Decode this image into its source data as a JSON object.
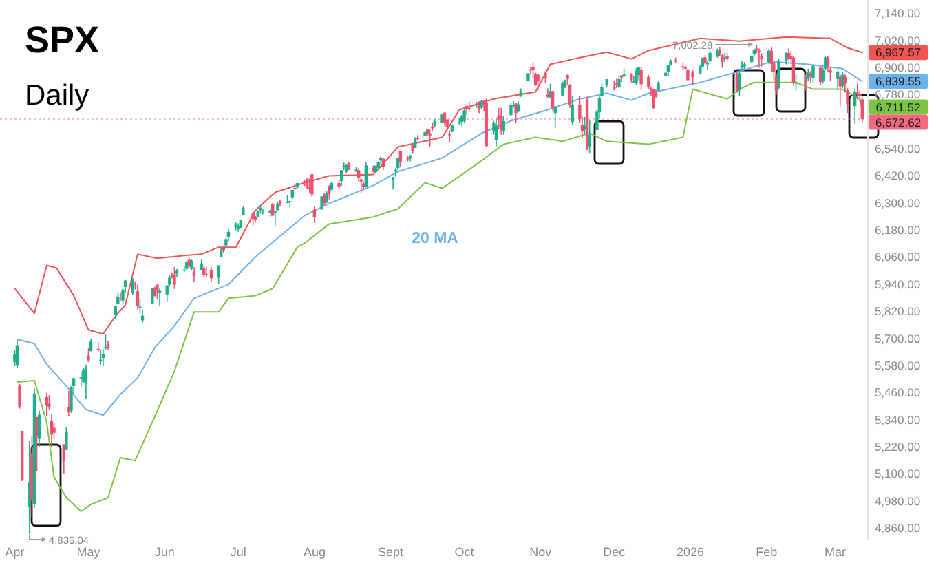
{
  "chart_data": {
    "type": "candlestick",
    "title": "SPX",
    "subtitle": "Daily",
    "colors": [
      "#1fae8b",
      "#1fae8b",
      "#f0506e",
      "#f0506e",
      "#1fae8b",
      "#f0506e",
      "#1fae8b",
      "#f0506e",
      "#1fae8b",
      "#f0506e",
      "#f0506e",
      "#f0506e",
      "#f0506e",
      "#f0506e",
      "#1fae8b",
      "#f0506e",
      "#1fae8b",
      "#1fae8b",
      "#1fae8b",
      "#1fae8b",
      "#1fae8b",
      "#f0506e",
      "#1fae8b",
      "#f0506e",
      "#1fae8b",
      "#1fae8b",
      "#1fae8b",
      "#f0506e",
      "#1fae8b",
      "#1fae8b",
      "#f0506e",
      "#1fae8b",
      "#1fae8b",
      "#1fae8b",
      "#f0506e",
      "#f0506e",
      "#1fae8b",
      "#1fae8b",
      "#1fae8b",
      "#f0506e",
      "#f0506e",
      "#1fae8b",
      "#1fae8b",
      "#1fae8b",
      "#f0506e",
      "#f0506e",
      "#1fae8b",
      "#1fae8b",
      "#1fae8b",
      "#f0506e",
      "#1fae8b",
      "#f0506e",
      "#1fae8b",
      "#f0506e",
      "#f0506e",
      "#f0506e",
      "#1fae8b",
      "#1fae8b",
      "#f0506e",
      "#1fae8b",
      "#1fae8b",
      "#1fae8b",
      "#1fae8b",
      "#1fae8b",
      "#1fae8b",
      "#f0506e",
      "#f0506e",
      "#1fae8b",
      "#1fae8b",
      "#1fae8b",
      "#1fae8b",
      "#f0506e",
      "#1fae8b",
      "#1fae8b",
      "#f0506e",
      "#1fae8b",
      "#1fae8b",
      "#1fae8b",
      "#f0506e",
      "#1fae8b",
      "#f0506e",
      "#f0506e",
      "#f0506e",
      "#f0506e",
      "#f0506e",
      "#1fae8b",
      "#f0506e",
      "#1fae8b",
      "#f0506e",
      "#1fae8b",
      "#f0506e",
      "#1fae8b",
      "#1fae8b",
      "#1fae8b",
      "#f0506e",
      "#1fae8b",
      "#f0506e",
      "#f0506e",
      "#f0506e",
      "#1fae8b",
      "#f0506e",
      "#1fae8b",
      "#1fae8b",
      "#1fae8b",
      "#f0506e",
      "#1fae8b",
      "#1fae8b",
      "#1fae8b",
      "#f0506e",
      "#f0506e",
      "#1fae8b",
      "#f0506e",
      "#1fae8b",
      "#f0506e",
      "#1fae8b",
      "#f0506e",
      "#f0506e",
      "#f0506e",
      "#1fae8b",
      "#1fae8b",
      "#f0506e",
      "#f0506e",
      "#f0506e",
      "#1fae8b",
      "#1fae8b",
      "#1fae8b",
      "#1fae8b",
      "#f0506e",
      "#f0506e",
      "#1fae8b",
      "#f0506e",
      "#1fae8b",
      "#f0506e",
      "#f0506e",
      "#1fae8b",
      "#1fae8b",
      "#f0506e",
      "#f0506e",
      "#1fae8b",
      "#1fae8b",
      "#1fae8b",
      "#f0506e",
      "#1fae8b",
      "#1fae8b",
      "#1fae8b",
      "#f0506e",
      "#f0506e",
      "#f0506e",
      "#f0506e",
      "#f0506e",
      "#f0506e",
      "#1fae8b",
      "#f0506e",
      "#1fae8b",
      "#1fae8b",
      "#1fae8b",
      "#f0506e",
      "#f0506e",
      "#1fae8b",
      "#f0506e",
      "#f0506e",
      "#1fae8b",
      "#f0506e",
      "#1fae8b",
      "#1fae8b",
      "#1fae8b",
      "#1fae8b",
      "#1fae8b",
      "#f0506e",
      "#f0506e",
      "#1fae8b",
      "#f0506e",
      "#1fae8b",
      "#f0506e",
      "#1fae8b",
      "#1fae8b",
      "#1fae8b",
      "#f0506e",
      "#f0506e",
      "#f0506e",
      "#f0506e",
      "#f0506e",
      "#1fae8b",
      "#1fae8b",
      "#1fae8b",
      "#1fae8b",
      "#f0506e",
      "#f0506e",
      "#f0506e",
      "#f0506e",
      "#f0506e",
      "#1fae8b",
      "#1fae8b",
      "#f0506e",
      "#1fae8b",
      "#1fae8b",
      "#1fae8b",
      "#f0506e",
      "#f0506e",
      "#1fae8b",
      "#f0506e",
      "#f0506e",
      "#1fae8b",
      "#1fae8b",
      "#1fae8b",
      "#1fae8b",
      "#1fae8b",
      "#f0506e",
      "#f0506e",
      "#f0506e",
      "#1fae8b",
      "#f0506e",
      "#f0506e",
      "#f0506e",
      "#1fae8b",
      "#1fae8b",
      "#f0506e",
      "#f0506e",
      "#f0506e",
      "#1fae8b",
      "#f0506e",
      "#1fae8b",
      "#f0506e",
      "#1fae8b",
      "#f0506e",
      "#1fae8b",
      "#1fae8b",
      "#f0506e",
      "#f0506e",
      "#1fae8b",
      "#f0506e",
      "#1fae8b",
      "#f0506e",
      "#f0506e",
      "#1fae8b",
      "#f0506e",
      "#f0506e",
      "#f0506e"
    ],
    "xlim": [
      "2025-03-26",
      "2026-03-14"
    ],
    "xticks": [
      {
        "value": "2025-04-01",
        "label": "Apr"
      },
      {
        "value": "2025-05-01",
        "label": "May"
      },
      {
        "value": "2025-06-01",
        "label": "Jun"
      },
      {
        "value": "2025-07-01",
        "label": "Jul"
      },
      {
        "value": "2025-08-01",
        "label": "Aug"
      },
      {
        "value": "2025-09-01",
        "label": "Sept"
      },
      {
        "value": "2025-10-01",
        "label": "Oct"
      },
      {
        "value": "2025-11-01",
        "label": "Nov"
      },
      {
        "value": "2025-12-01",
        "label": "Dec"
      },
      {
        "value": "2026-01-01",
        "label": "2026"
      },
      {
        "value": "2026-02-01",
        "label": "Feb"
      },
      {
        "value": "2026-03-01",
        "label": "Mar"
      }
    ],
    "ylim": [
      4810,
      7200
    ],
    "yticks": [
      {
        "value": 7140,
        "label": "7,140.00"
      },
      {
        "value": 7020,
        "label": "7,020.00"
      },
      {
        "value": 6900,
        "label": "6,900.00"
      },
      {
        "value": 6780,
        "label": "6,780.00"
      },
      {
        "value": 6540,
        "label": "6,540.00"
      },
      {
        "value": 6420,
        "label": "6,420.00"
      },
      {
        "value": 6300,
        "label": "6,300.00"
      },
      {
        "value": 6180,
        "label": "6,180.00"
      },
      {
        "value": 6060,
        "label": "6,060.00"
      },
      {
        "value": 5940,
        "label": "5,940.00"
      },
      {
        "value": 5820,
        "label": "5,820.00"
      },
      {
        "value": 5700,
        "label": "5,700.00"
      },
      {
        "value": 5580,
        "label": "5,580.00"
      },
      {
        "value": 5460,
        "label": "5,460.00"
      },
      {
        "value": 5340,
        "label": "5,340.00"
      },
      {
        "value": 5220,
        "label": "5,220.00"
      },
      {
        "value": 5100,
        "label": "5,100.00"
      },
      {
        "value": 4980,
        "label": "4,980.00"
      },
      {
        "value": 4860,
        "label": "4,860.00"
      }
    ],
    "x": [
      "2025-04-01",
      "2025-04-02",
      "2025-04-03",
      "2025-04-04",
      "2025-04-07",
      "2025-04-08",
      "2025-04-09",
      "2025-04-10",
      "2025-04-11",
      "2025-04-14",
      "2025-04-15",
      "2025-04-16",
      "2025-04-17",
      "2025-04-21",
      "2025-04-22",
      "2025-04-23",
      "2025-04-24",
      "2025-04-25",
      "2025-04-28",
      "2025-04-29",
      "2025-04-30",
      "2025-05-01",
      "2025-05-02",
      "2025-05-05",
      "2025-05-06",
      "2025-05-07",
      "2025-05-08",
      "2025-05-09",
      "2025-05-12",
      "2025-05-13",
      "2025-05-14",
      "2025-05-15",
      "2025-05-16",
      "2025-05-19",
      "2025-05-20",
      "2025-05-21",
      "2025-05-22",
      "2025-05-23",
      "2025-05-27",
      "2025-05-28",
      "2025-05-29",
      "2025-05-30",
      "2025-06-02",
      "2025-06-03",
      "2025-06-04",
      "2025-06-05",
      "2025-06-06",
      "2025-06-09",
      "2025-06-10",
      "2025-06-11",
      "2025-06-12",
      "2025-06-13",
      "2025-06-16",
      "2025-06-17",
      "2025-06-18",
      "2025-06-20",
      "2025-06-23",
      "2025-06-24",
      "2025-06-25",
      "2025-06-26",
      "2025-06-27",
      "2025-06-30",
      "2025-07-01",
      "2025-07-02",
      "2025-07-03",
      "2025-07-07",
      "2025-07-08",
      "2025-07-09",
      "2025-07-10",
      "2025-07-11",
      "2025-07-14",
      "2025-07-15",
      "2025-07-16",
      "2025-07-17",
      "2025-07-18",
      "2025-07-21",
      "2025-07-22",
      "2025-07-23",
      "2025-07-24",
      "2025-07-25",
      "2025-07-28",
      "2025-07-29",
      "2025-07-30",
      "2025-07-31",
      "2025-08-01",
      "2025-08-04",
      "2025-08-05",
      "2025-08-06",
      "2025-08-07",
      "2025-08-08",
      "2025-08-11",
      "2025-08-12",
      "2025-08-13",
      "2025-08-14",
      "2025-08-15",
      "2025-08-18",
      "2025-08-19",
      "2025-08-20",
      "2025-08-21",
      "2025-08-22",
      "2025-08-25",
      "2025-08-26",
      "2025-08-27",
      "2025-08-28",
      "2025-08-29",
      "2025-09-02",
      "2025-09-03",
      "2025-09-04",
      "2025-09-05",
      "2025-09-08",
      "2025-09-09",
      "2025-09-10",
      "2025-09-11",
      "2025-09-12",
      "2025-09-15",
      "2025-09-16",
      "2025-09-17",
      "2025-09-18",
      "2025-09-19",
      "2025-09-22",
      "2025-09-23",
      "2025-09-24",
      "2025-09-25",
      "2025-09-26",
      "2025-09-29",
      "2025-09-30",
      "2025-10-01",
      "2025-10-02",
      "2025-10-03",
      "2025-10-06",
      "2025-10-07",
      "2025-10-08",
      "2025-10-09",
      "2025-10-10",
      "2025-10-13",
      "2025-10-14",
      "2025-10-15",
      "2025-10-16",
      "2025-10-17",
      "2025-10-20",
      "2025-10-21",
      "2025-10-22",
      "2025-10-23",
      "2025-10-24",
      "2025-10-27",
      "2025-10-28",
      "2025-10-29",
      "2025-10-30",
      "2025-10-31",
      "2025-11-03",
      "2025-11-04",
      "2025-11-05",
      "2025-11-06",
      "2025-11-07",
      "2025-11-10",
      "2025-11-11",
      "2025-11-12",
      "2025-11-13",
      "2025-11-14",
      "2025-11-17",
      "2025-11-18",
      "2025-11-19",
      "2025-11-20",
      "2025-11-21",
      "2025-11-24",
      "2025-11-25",
      "2025-11-26",
      "2025-11-28",
      "2025-12-01",
      "2025-12-02",
      "2025-12-03",
      "2025-12-04",
      "2025-12-05",
      "2025-12-08",
      "2025-12-09",
      "2025-12-10",
      "2025-12-11",
      "2025-12-12",
      "2025-12-15",
      "2025-12-16",
      "2025-12-17",
      "2025-12-18",
      "2025-12-19",
      "2025-12-22",
      "2025-12-23",
      "2025-12-24",
      "2025-12-26",
      "2025-12-29",
      "2025-12-30",
      "2025-12-31",
      "2026-01-02",
      "2026-01-05",
      "2026-01-06",
      "2026-01-07",
      "2026-01-08",
      "2026-01-09",
      "2026-01-12",
      "2026-01-13",
      "2026-01-14",
      "2026-01-15",
      "2026-01-16",
      "2026-01-20",
      "2026-01-21",
      "2026-01-22",
      "2026-01-23",
      "2026-01-26",
      "2026-01-27",
      "2026-01-28",
      "2026-01-29",
      "2026-01-30",
      "2026-02-02",
      "2026-02-03",
      "2026-02-04",
      "2026-02-05",
      "2026-02-06",
      "2026-02-09",
      "2026-02-10",
      "2026-02-11",
      "2026-02-12",
      "2026-02-13",
      "2026-02-17",
      "2026-02-18",
      "2026-02-19",
      "2026-02-20",
      "2026-02-23",
      "2026-02-24",
      "2026-02-25",
      "2026-02-26",
      "2026-02-27",
      "2026-03-02",
      "2026-03-03",
      "2026-03-04",
      "2026-03-05",
      "2026-03-06",
      "2026-03-09",
      "2026-03-10",
      "2026-03-11",
      "2026-03-12"
    ],
    "ohlc": [
      [
        5597,
        5650,
        5578,
        5633
      ],
      [
        5580,
        5695,
        5571,
        5671
      ],
      [
        5492,
        5500,
        5390,
        5397
      ],
      [
        5292,
        5292,
        5069,
        5074
      ],
      [
        4953,
        5246,
        4835.04,
        5062
      ],
      [
        5193,
        5267,
        4910,
        4982
      ],
      [
        4966,
        5481,
        4950,
        5457
      ],
      [
        5353,
        5353,
        5115,
        5268
      ],
      [
        5256,
        5381,
        5220,
        5363
      ],
      [
        5441,
        5460,
        5358,
        5406
      ],
      [
        5412,
        5450,
        5387,
        5397
      ],
      [
        5335,
        5367,
        5220,
        5275
      ],
      [
        5305,
        5328,
        5255,
        5283
      ],
      [
        5232,
        5232,
        5101,
        5158
      ],
      [
        5207,
        5309,
        5207,
        5288
      ],
      [
        5395,
        5469,
        5356,
        5376
      ],
      [
        5381,
        5489,
        5371,
        5485
      ],
      [
        5490,
        5528,
        5456,
        5525
      ],
      [
        5529,
        5554,
        5484,
        5529
      ],
      [
        5509,
        5571,
        5505,
        5561
      ],
      [
        5500,
        5581,
        5434,
        5569
      ],
      [
        5626,
        5659,
        5597,
        5604
      ],
      [
        5645,
        5700,
        5644,
        5687
      ],
      [
        5655,
        5684,
        5640,
        5650
      ],
      [
        5607,
        5649,
        5586,
        5607
      ],
      [
        5614,
        5654,
        5578,
        5631
      ],
      [
        5663,
        5720,
        5649,
        5664
      ],
      [
        5675,
        5691,
        5650,
        5660
      ],
      [
        5807,
        5845,
        5786,
        5844
      ],
      [
        5854,
        5906,
        5854,
        5887
      ],
      [
        5896,
        5906,
        5868,
        5893
      ],
      [
        5869,
        5925,
        5851,
        5917
      ],
      [
        5929,
        5959,
        5903,
        5958
      ],
      [
        5903,
        5969,
        5895,
        5964
      ],
      [
        5944,
        5954,
        5918,
        5941
      ],
      [
        5910,
        5939,
        5830,
        5845
      ],
      [
        5842,
        5878,
        5811,
        5842
      ],
      [
        5781,
        5830,
        5767,
        5802
      ],
      [
        5854,
        5925,
        5854,
        5922
      ],
      [
        5926,
        5930,
        5887,
        5889
      ],
      [
        5939,
        5944,
        5876,
        5912
      ],
      [
        5903,
        5922,
        5843,
        5912
      ],
      [
        5896,
        5937,
        5862,
        5936
      ],
      [
        5939,
        5981,
        5930,
        5970
      ],
      [
        5979,
        5990,
        5967,
        5971
      ],
      [
        5985,
        6017,
        5921,
        5939
      ],
      [
        5988,
        6008,
        5974,
        6000
      ],
      [
        6005,
        6022,
        5995,
        6006
      ],
      [
        6009,
        6044,
        6001,
        6038
      ],
      [
        6049,
        6060,
        6013,
        6022
      ],
      [
        6010,
        6050,
        6004,
        6045
      ],
      [
        5997,
        6017,
        5952,
        5977
      ],
      [
        6005,
        6050,
        6005,
        6033
      ],
      [
        6013,
        6023,
        5974,
        5983
      ],
      [
        5986,
        6019,
        5971,
        5981
      ],
      [
        6003,
        6018,
        5952,
        5967
      ],
      [
        5970,
        6025,
        5944,
        6025
      ],
      [
        6062,
        6101,
        6062,
        6092
      ],
      [
        6105,
        6108,
        6081,
        6092
      ],
      [
        6113,
        6146,
        6102,
        6141
      ],
      [
        6151,
        6187,
        6132,
        6173
      ],
      [
        6193,
        6215,
        6180,
        6205
      ],
      [
        6187,
        6211,
        6173,
        6198
      ],
      [
        6191,
        6227,
        6191,
        6227
      ],
      [
        6247,
        6285,
        6247,
        6279
      ],
      [
        6258,
        6263,
        6201,
        6230
      ],
      [
        6238,
        6243,
        6215,
        6226
      ],
      [
        6240,
        6269,
        6237,
        6263
      ],
      [
        6269,
        6291,
        6254,
        6280
      ],
      [
        6255,
        6274,
        6251,
        6260
      ],
      [
        6256,
        6273,
        6238,
        6269
      ],
      [
        6295,
        6302,
        6244,
        6244
      ],
      [
        6259,
        6266,
        6201,
        6264
      ],
      [
        6270,
        6304,
        6265,
        6297
      ],
      [
        6309,
        6316,
        6286,
        6297
      ],
      [
        6305,
        6336,
        6303,
        6305
      ],
      [
        6306,
        6310,
        6281,
        6309
      ],
      [
        6326,
        6360,
        6318,
        6359
      ],
      [
        6368,
        6382,
        6360,
        6363
      ],
      [
        6370,
        6390,
        6364,
        6389
      ],
      [
        6397,
        6401,
        6376,
        6390
      ],
      [
        6409,
        6410,
        6365,
        6371
      ],
      [
        6373,
        6409,
        6346,
        6362
      ],
      [
        6428,
        6428,
        6328,
        6339
      ],
      [
        6271,
        6287,
        6213,
        6238
      ],
      [
        6272,
        6330,
        6272,
        6330
      ],
      [
        6335,
        6346,
        6289,
        6299
      ],
      [
        6307,
        6352,
        6300,
        6345
      ],
      [
        6375,
        6379,
        6317,
        6340
      ],
      [
        6359,
        6396,
        6359,
        6389
      ],
      [
        6389,
        6403,
        6363,
        6374
      ],
      [
        6398,
        6446,
        6378,
        6446
      ],
      [
        6465,
        6480,
        6447,
        6466
      ],
      [
        6439,
        6473,
        6434,
        6469
      ],
      [
        6478,
        6481,
        6446,
        6450
      ],
      [
        6445,
        6459,
        6438,
        6449
      ],
      [
        6446,
        6457,
        6397,
        6411
      ],
      [
        6406,
        6409,
        6343,
        6396
      ],
      [
        6387,
        6394,
        6360,
        6370
      ],
      [
        6371,
        6482,
        6371,
        6467
      ],
      [
        6457,
        6467,
        6438,
        6440
      ],
      [
        6438,
        6466,
        6434,
        6466
      ],
      [
        6457,
        6485,
        6454,
        6481
      ],
      [
        6489,
        6509,
        6469,
        6502
      ],
      [
        6497,
        6499,
        6447,
        6460
      ],
      [
        6401,
        6416,
        6361,
        6416
      ],
      [
        6442,
        6455,
        6418,
        6448
      ],
      [
        6456,
        6502,
        6447,
        6502
      ],
      [
        6530,
        6532,
        6460,
        6482
      ],
      [
        6500,
        6508,
        6485,
        6495
      ],
      [
        6498,
        6513,
        6485,
        6512
      ],
      [
        6560,
        6561,
        6519,
        6532
      ],
      [
        6545,
        6592,
        6545,
        6587
      ],
      [
        6589,
        6601,
        6578,
        6584
      ],
      [
        6598,
        6616,
        6598,
        6615
      ],
      [
        6626,
        6627,
        6599,
        6606
      ],
      [
        6609,
        6626,
        6551,
        6600
      ],
      [
        6637,
        6656,
        6617,
        6632
      ],
      [
        6643,
        6672,
        6635,
        6664
      ],
      [
        6657,
        6695,
        6654,
        6693
      ],
      [
        6701,
        6702,
        6644,
        6657
      ],
      [
        6670,
        6674,
        6618,
        6638
      ],
      [
        6606,
        6622,
        6570,
        6605
      ],
      [
        6617,
        6650,
        6614,
        6644
      ],
      [
        6661,
        6679,
        6645,
        6661
      ],
      [
        6661,
        6690,
        6636,
        6688
      ],
      [
        6664,
        6718,
        6657,
        6711
      ],
      [
        6731,
        6731,
        6692,
        6715
      ],
      [
        6722,
        6750,
        6705,
        6716
      ],
      [
        6734,
        6749,
        6722,
        6740
      ],
      [
        6748,
        6751,
        6699,
        6714
      ],
      [
        6723,
        6755,
        6719,
        6753
      ],
      [
        6753,
        6758,
        6708,
        6735
      ],
      [
        6744,
        6764,
        6550,
        6553
      ],
      [
        6617,
        6664,
        6604,
        6655
      ],
      [
        6580,
        6674,
        6552,
        6644
      ],
      [
        6689,
        6722,
        6629,
        6671
      ],
      [
        6688,
        6722,
        6603,
        6630
      ],
      [
        6618,
        6686,
        6603,
        6664
      ],
      [
        6690,
        6744,
        6690,
        6735
      ],
      [
        6732,
        6752,
        6722,
        6735
      ],
      [
        6741,
        6744,
        6655,
        6699
      ],
      [
        6705,
        6751,
        6705,
        6738
      ],
      [
        6775,
        6808,
        6771,
        6792
      ],
      [
        6840,
        6876,
        6840,
        6875
      ],
      [
        6892,
        6901,
        6871,
        6891
      ],
      [
        6902,
        6920,
        6856,
        6890
      ],
      [
        6872,
        6878,
        6820,
        6822
      ],
      [
        6869,
        6872,
        6799,
        6840
      ],
      [
        6878,
        6882,
        6834,
        6852
      ],
      [
        6781,
        6808,
        6764,
        6771
      ],
      [
        6769,
        6829,
        6767,
        6796
      ],
      [
        6796,
        6798,
        6707,
        6720
      ],
      [
        6699,
        6729,
        6632,
        6728
      ],
      [
        6777,
        6838,
        6774,
        6832
      ],
      [
        6815,
        6848,
        6810,
        6846
      ],
      [
        6867,
        6870,
        6824,
        6850
      ],
      [
        6825,
        6827,
        6722,
        6737
      ],
      [
        6660,
        6775,
        6647,
        6734
      ],
      [
        6736,
        6775,
        6657,
        6672
      ],
      [
        6647,
        6683,
        6589,
        6617
      ],
      [
        6628,
        6682,
        6605,
        6642
      ],
      [
        6761,
        6771,
        6535,
        6538
      ],
      [
        6552,
        6666,
        6522,
        6603
      ],
      [
        6624,
        6714,
        6623,
        6705
      ],
      [
        6703,
        6778,
        6673,
        6766
      ],
      [
        6776,
        6830,
        6776,
        6813
      ],
      [
        6823,
        6850,
        6812,
        6849
      ],
      [
        6813,
        6844,
        6800,
        6812
      ],
      [
        6830,
        6851,
        6810,
        6829
      ],
      [
        6815,
        6862,
        6810,
        6850
      ],
      [
        6866,
        6867,
        6837,
        6857
      ],
      [
        6867,
        6896,
        6859,
        6870
      ],
      [
        6871,
        6876,
        6835,
        6846
      ],
      [
        6840,
        6864,
        6832,
        6840
      ],
      [
        6831,
        6899,
        6823,
        6887
      ],
      [
        6867,
        6904,
        6844,
        6901
      ],
      [
        6889,
        6902,
        6801,
        6827
      ],
      [
        6859,
        6868,
        6806,
        6816
      ],
      [
        6809,
        6817,
        6776,
        6800
      ],
      [
        6806,
        6807,
        6719,
        6721
      ],
      [
        6789,
        6803,
        6767,
        6775
      ],
      [
        6800,
        6841,
        6796,
        6835
      ],
      [
        6863,
        6880,
        6860,
        6878
      ],
      [
        6881,
        6911,
        6864,
        6910
      ],
      [
        6911,
        6937,
        6909,
        6932
      ],
      [
        6933,
        6945,
        6922,
        6930
      ],
      [
        6906,
        6920,
        6888,
        6905
      ],
      [
        6903,
        6908,
        6892,
        6896
      ],
      [
        6893,
        6893,
        6844,
        6845
      ],
      [
        6879,
        6891,
        6824,
        6858
      ],
      [
        6875,
        6912,
        6870,
        6902
      ],
      [
        6905,
        6945,
        6900,
        6944
      ],
      [
        6946,
        6955,
        6915,
        6921
      ],
      [
        6915,
        6930,
        6890,
        6921
      ],
      [
        6930,
        6975,
        6925,
        6966
      ],
      [
        6950,
        6985,
        6945,
        6977
      ],
      [
        6978,
        6990,
        6950,
        6963
      ],
      [
        6955,
        6960,
        6900,
        6926
      ],
      [
        6940,
        6965,
        6925,
        6944
      ],
      [
        6950,
        6965,
        6930,
        6940
      ],
      [
        6870,
        6880,
        6790,
        6797
      ],
      [
        6800,
        6890,
        6775,
        6876
      ],
      [
        6900,
        6930,
        6890,
        6913
      ],
      [
        6905,
        6925,
        6895,
        6916
      ],
      [
        6925,
        6955,
        6920,
        6950
      ],
      [
        6960,
        6985,
        6950,
        6979
      ],
      [
        6985,
        7002.28,
        6965,
        6978
      ],
      [
        6975,
        6985,
        6900,
        6969
      ],
      [
        6950,
        6965,
        6905,
        6939
      ],
      [
        6925,
        6985,
        6915,
        6976
      ],
      [
        6975,
        6990,
        6880,
        6917
      ],
      [
        6920,
        6930,
        6840,
        6882
      ],
      [
        6860,
        6875,
        6780,
        6798
      ],
      [
        6810,
        6940,
        6805,
        6932
      ],
      [
        6930,
        6970,
        6915,
        6964
      ],
      [
        6965,
        6985,
        6935,
        6942
      ],
      [
        6950,
        6975,
        6925,
        6941
      ],
      [
        6945,
        6950,
        6820,
        6833
      ],
      [
        6830,
        6870,
        6800,
        6836
      ],
      [
        6845,
        6870,
        6800,
        6843
      ],
      [
        6850,
        6895,
        6840,
        6881
      ],
      [
        6875,
        6885,
        6835,
        6861
      ],
      [
        6855,
        6915,
        6830,
        6909
      ],
      [
        6900,
        6905,
        6825,
        6837
      ],
      [
        6840,
        6900,
        6830,
        6890
      ],
      [
        6895,
        6950,
        6890,
        6946
      ],
      [
        6945,
        6950,
        6880,
        6908
      ],
      [
        6890,
        6900,
        6840,
        6878
      ],
      [
        6850,
        6890,
        6800,
        6881
      ],
      [
        6860,
        6870,
        6730,
        6817
      ],
      [
        6820,
        6880,
        6810,
        6869
      ],
      [
        6860,
        6870,
        6790,
        6830
      ],
      [
        6800,
        6810,
        6700,
        6740
      ],
      [
        6730,
        6810,
        6650,
        6795
      ],
      [
        6790,
        6830,
        6760,
        6781
      ],
      [
        6785,
        6800,
        6750,
        6775
      ],
      [
        6760,
        6770,
        6660,
        6672.62
      ]
    ],
    "series": [
      {
        "type": "line",
        "color": "#f05454",
        "x": [
          "2025-04-01",
          "2025-04-09",
          "2025-04-14",
          "2025-04-18",
          "2025-04-25",
          "2025-05-01",
          "2025-05-07",
          "2025-05-12",
          "2025-05-16",
          "2025-05-21",
          "2025-05-29",
          "2025-06-09",
          "2025-06-16",
          "2025-06-23",
          "2025-06-30",
          "2025-07-08",
          "2025-07-16",
          "2025-07-28",
          "2025-08-07",
          "2025-08-25",
          "2025-09-04",
          "2025-09-22",
          "2025-09-29",
          "2025-10-13",
          "2025-10-30",
          "2025-11-05",
          "2025-11-17",
          "2025-11-28",
          "2025-12-08",
          "2025-12-15",
          "2026-01-05",
          "2026-01-21",
          "2026-02-09",
          "2026-02-27",
          "2026-03-06",
          "2026-03-12"
        ],
        "values": [
          5922,
          5812,
          6025,
          6013,
          5891,
          5739,
          5721,
          5800,
          5849,
          6074,
          6056,
          6068,
          6074,
          6105,
          6105,
          6269,
          6348,
          6391,
          6421,
          6427,
          6549,
          6592,
          6714,
          6762,
          6793,
          6915,
          6945,
          6969,
          6939,
          6976,
          7030,
          7018,
          7036,
          7030,
          6988,
          6967.57
        ]
      },
      {
        "type": "line",
        "name": "20 MA",
        "color": "#6fb2ea",
        "x": [
          "2025-04-02",
          "2025-04-09",
          "2025-04-14",
          "2025-04-23",
          "2025-04-30",
          "2025-05-07",
          "2025-05-14",
          "2025-05-21",
          "2025-05-28",
          "2025-06-05",
          "2025-06-13",
          "2025-06-20",
          "2025-06-27",
          "2025-07-08",
          "2025-07-28",
          "2025-08-07",
          "2025-08-25",
          "2025-09-04",
          "2025-09-22",
          "2025-10-08",
          "2025-10-20",
          "2025-11-04",
          "2025-11-17",
          "2025-11-28",
          "2025-12-08",
          "2025-12-15",
          "2026-01-05",
          "2026-01-21",
          "2026-02-03",
          "2026-02-18",
          "2026-03-04",
          "2026-03-12"
        ],
        "values": [
          5697,
          5678,
          5587,
          5477,
          5386,
          5361,
          5453,
          5526,
          5660,
          5757,
          5879,
          5910,
          5940,
          6062,
          6245,
          6299,
          6379,
          6440,
          6500,
          6610,
          6665,
          6714,
          6762,
          6787,
          6756,
          6787,
          6835,
          6884,
          6927,
          6915,
          6896,
          6839.55
        ]
      },
      {
        "type": "line",
        "color": "#7cc444",
        "x": [
          "2025-04-02",
          "2025-04-09",
          "2025-04-14",
          "2025-04-17",
          "2025-04-22",
          "2025-04-28",
          "2025-05-02",
          "2025-05-09",
          "2025-05-14",
          "2025-05-20",
          "2025-05-28",
          "2025-06-05",
          "2025-06-13",
          "2025-06-23",
          "2025-06-27",
          "2025-07-08",
          "2025-07-15",
          "2025-07-25",
          "2025-07-28",
          "2025-08-07",
          "2025-08-25",
          "2025-09-04",
          "2025-09-15",
          "2025-09-22",
          "2025-10-08",
          "2025-10-17",
          "2025-10-30",
          "2025-11-10",
          "2025-11-21",
          "2025-11-28",
          "2025-12-08",
          "2025-12-15",
          "2025-12-29",
          "2026-01-02",
          "2026-01-16",
          "2026-01-21",
          "2026-01-27",
          "2026-02-13",
          "2026-02-20",
          "2026-03-04",
          "2026-03-11",
          "2026-03-12"
        ],
        "values": [
          5508,
          5514,
          5331,
          5087,
          4996,
          4935,
          4966,
          4996,
          5173,
          5160,
          5355,
          5556,
          5818,
          5818,
          5879,
          5891,
          5922,
          6105,
          6123,
          6208,
          6239,
          6275,
          6391,
          6366,
          6488,
          6561,
          6592,
          6574,
          6610,
          6574,
          6567,
          6561,
          6592,
          6805,
          6762,
          6805,
          6835,
          6835,
          6805,
          6805,
          6762,
          6711.52
        ]
      }
    ],
    "ref_lines": [
      {
        "axis": "y",
        "value": 6672.62,
        "label": "6,672.62",
        "color": "#f26a7e",
        "line_style": "dotted"
      }
    ],
    "annotations": [
      {
        "text": "7,002.28",
        "x": "2026-01-28",
        "y": 7002.28
      },
      {
        "text": "4,835.04",
        "x": "2025-04-07",
        "y": 4835.04
      },
      {
        "text": "6,967.57",
        "x": "2026-03-12",
        "y": 6967.57
      },
      {
        "text": "6,839.55",
        "x": "2026-03-12",
        "y": 6839.55
      },
      {
        "text": "6,711.52",
        "x": "2026-03-12",
        "y": 6711.52
      }
    ]
  }
}
